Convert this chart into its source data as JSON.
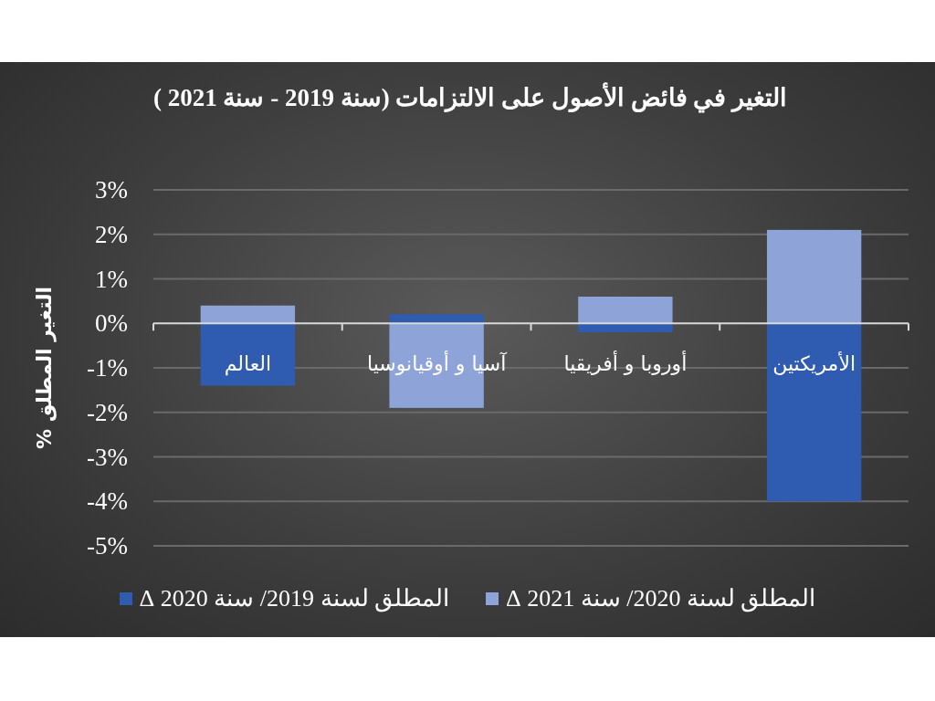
{
  "chart_data": {
    "type": "bar",
    "title": "التغير في فائض الأصول على الالتزامات (سنة 2019 - سنة 2021 )",
    "ylabel": "التغير المطلق %",
    "categories": [
      "العالم",
      "آسيا و أوقيانوسيا",
      "أوروبا و أفريقيا",
      "الأمريكتين"
    ],
    "series": [
      {
        "name": "المطلق لسنة 2020/ سنة 2021 Δ",
        "color": "#8ea4d8",
        "values": [
          0.4,
          -1.9,
          0.6,
          2.1
        ]
      },
      {
        "name": "المطلق لسنة 2019/ سنة 2020 Δ",
        "color": "#2f5cb0",
        "values": [
          -1.4,
          0.2,
          -0.2,
          -4.0
        ]
      }
    ],
    "stacked": true,
    "ylim": [
      -5,
      3
    ],
    "yticks": [
      {
        "value": 3,
        "label": "3%"
      },
      {
        "value": 2,
        "label": "2%"
      },
      {
        "value": 1,
        "label": "1%"
      },
      {
        "value": 0,
        "label": "0%"
      },
      {
        "value": -1,
        "label": "-1%"
      },
      {
        "value": -2,
        "label": "-2%"
      },
      {
        "value": -3,
        "label": "-3%"
      },
      {
        "value": -4,
        "label": "-4%"
      },
      {
        "value": -5,
        "label": "-5%"
      }
    ],
    "grid": "y",
    "legend": "bottom"
  }
}
